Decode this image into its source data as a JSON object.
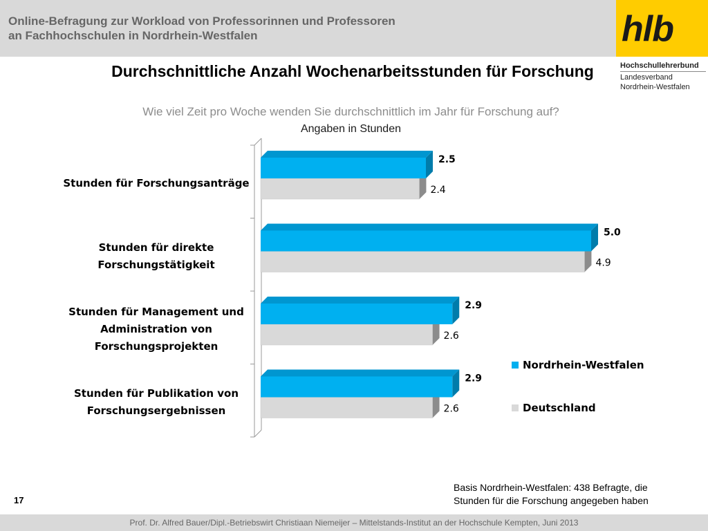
{
  "header": {
    "title": "Online-Befragung  zur  Workload von Professorinnen und Professoren\nan Fachhochschulen in Nordrhein-Westfalen"
  },
  "logo": {
    "text": "hlb",
    "org_name": "Hochschullehrerbund",
    "org_line2": "Landesverband",
    "org_line3": "Nordrhein-Westfalen"
  },
  "colors": {
    "nrw": "#00b0f0",
    "nrw_top": "#0096d0",
    "nrw_side": "#007cab",
    "de": "#d9d9d9",
    "de_side": "#8c8c8c",
    "header_bg": "#d9d9d9",
    "logo_bg": "#ffcc00"
  },
  "chart_data": {
    "type": "bar",
    "orientation": "horizontal",
    "title": "Durchschnittliche Anzahl Wochenarbeitsstunden für Forschung",
    "subtitle": "Wie viel Zeit pro Woche wenden Sie durchschnittlich im Jahr für Forschung auf?",
    "unit_note": "Angaben in Stunden",
    "categories": [
      "Stunden für Forschungsanträge",
      "Stunden für direkte Forschungstätigkeit",
      "Stunden für Management und Administration von Forschungsprojekten",
      "Stunden für Publikation von Forschungsergebnissen"
    ],
    "category_lines": [
      [
        "Stunden für Forschungsanträge"
      ],
      [
        "Stunden für direkte",
        "Forschungstätigkeit"
      ],
      [
        "Stunden für Management und",
        "Administration von",
        "Forschungsprojekten"
      ],
      [
        "Stunden für Publikation von",
        "Forschungsergebnissen"
      ]
    ],
    "series": [
      {
        "name": "Nordrhein-Westfalen",
        "values": [
          2.5,
          5.0,
          2.9,
          2.9
        ],
        "labels": [
          "2.5",
          "5.0",
          "2.9",
          "2.9"
        ]
      },
      {
        "name": "Deutschland",
        "values": [
          2.4,
          4.9,
          2.6,
          2.6
        ],
        "labels": [
          "2.4",
          "4.9",
          "2.6",
          "2.6"
        ]
      }
    ],
    "legend_position": "right",
    "grid": false
  },
  "footer": {
    "basis_note": "Basis Nordrhein-Westfalen: 438 Befragte, die\nStunden für die Forschung angegeben haben",
    "page_number": "17",
    "credit": "Prof. Dr. Alfred Bauer/Dipl.-Betriebswirt Christiaan Niemeijer – Mittelstands-Institut an der Hochschule Kempten, Juni 2013"
  }
}
